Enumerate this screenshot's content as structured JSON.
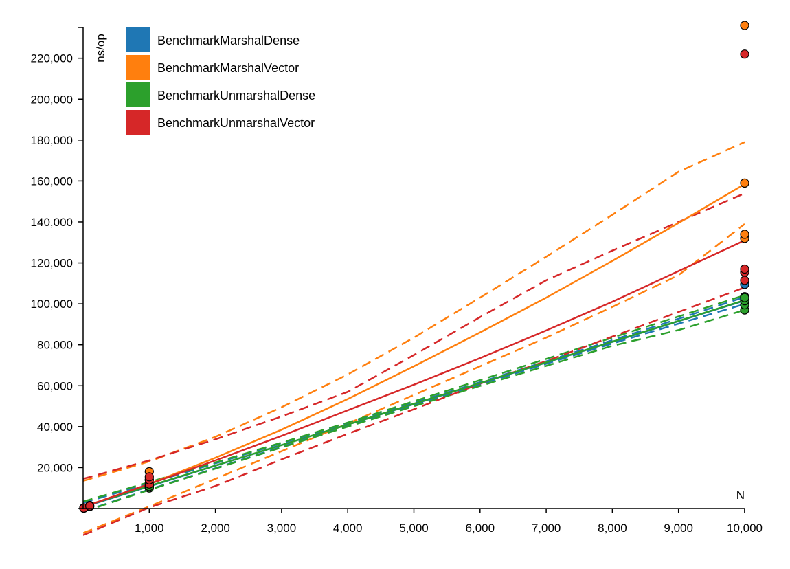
{
  "chart_data": {
    "type": "scatter",
    "xlabel": "N",
    "ylabel": "ns/op",
    "xlim": [
      0,
      10000
    ],
    "ylim": [
      0,
      235000
    ],
    "x_ticks": [
      1000,
      2000,
      3000,
      4000,
      5000,
      6000,
      7000,
      8000,
      9000,
      10000
    ],
    "x_tick_labels": [
      "1,000",
      "2,000",
      "3,000",
      "4,000",
      "5,000",
      "6,000",
      "7,000",
      "8,000",
      "9,000",
      "10,000"
    ],
    "y_ticks": [
      20000,
      40000,
      60000,
      80000,
      100000,
      120000,
      140000,
      160000,
      180000,
      200000,
      220000
    ],
    "y_tick_labels": [
      "20,000",
      "40,000",
      "60,000",
      "80,000",
      "100,000",
      "120,000",
      "140,000",
      "160,000",
      "180,000",
      "200,000",
      "220,000"
    ],
    "grid": false,
    "legend_position": "top-left",
    "series": [
      {
        "name": "BenchmarkMarshalDense",
        "color": "#1f77b4",
        "points": [
          [
            10,
            200
          ],
          [
            10,
            300
          ],
          [
            100,
            1000
          ],
          [
            100,
            1200
          ],
          [
            1000,
            10500
          ],
          [
            1000,
            11200
          ],
          [
            10000,
            102000
          ],
          [
            10000,
            103500
          ],
          [
            10000,
            109500
          ]
        ],
        "fit": [
          [
            0,
            700
          ],
          [
            1000,
            10800
          ],
          [
            2000,
            20900
          ],
          [
            3000,
            31000
          ],
          [
            4000,
            41000
          ],
          [
            5000,
            51000
          ],
          [
            6000,
            61200
          ],
          [
            7000,
            71300
          ],
          [
            8000,
            81400
          ],
          [
            9000,
            91500
          ],
          [
            10000,
            101600
          ]
        ],
        "ci_upper": [
          [
            0,
            2800
          ],
          [
            1000,
            12300
          ],
          [
            2000,
            22100
          ],
          [
            3000,
            31900
          ],
          [
            4000,
            41700
          ],
          [
            5000,
            51600
          ],
          [
            6000,
            61700
          ],
          [
            7000,
            71900
          ],
          [
            8000,
            82200
          ],
          [
            9000,
            92700
          ],
          [
            10000,
            103300
          ]
        ],
        "ci_lower": [
          [
            0,
            -1400
          ],
          [
            1000,
            9300
          ],
          [
            2000,
            19700
          ],
          [
            3000,
            30100
          ],
          [
            4000,
            40300
          ],
          [
            5000,
            50400
          ],
          [
            6000,
            60700
          ],
          [
            7000,
            70700
          ],
          [
            8000,
            80600
          ],
          [
            9000,
            90300
          ],
          [
            10000,
            99900
          ]
        ]
      },
      {
        "name": "BenchmarkMarshalVector",
        "color": "#ff7f0e",
        "points": [
          [
            10,
            300
          ],
          [
            100,
            1500
          ],
          [
            1000,
            14000
          ],
          [
            1000,
            18000
          ],
          [
            10000,
            132000
          ],
          [
            10000,
            134000
          ],
          [
            10000,
            159000
          ],
          [
            10000,
            236000
          ]
        ],
        "fit": [
          [
            0,
            800
          ],
          [
            1000,
            12000
          ],
          [
            2000,
            24800
          ],
          [
            3000,
            38500
          ],
          [
            4000,
            53500
          ],
          [
            5000,
            69500
          ],
          [
            6000,
            86000
          ],
          [
            7000,
            103000
          ],
          [
            8000,
            121000
          ],
          [
            9000,
            139500
          ],
          [
            10000,
            158500
          ]
        ],
        "ci_upper": [
          [
            0,
            13500
          ],
          [
            1000,
            23000
          ],
          [
            2000,
            35000
          ],
          [
            3000,
            49500
          ],
          [
            4000,
            65500
          ],
          [
            5000,
            83500
          ],
          [
            6000,
            103000
          ],
          [
            7000,
            123000
          ],
          [
            8000,
            143500
          ],
          [
            9000,
            164500
          ],
          [
            10000,
            179000
          ]
        ],
        "ci_lower": [
          [
            0,
            -12000
          ],
          [
            1000,
            1000
          ],
          [
            2000,
            14500
          ],
          [
            3000,
            28000
          ],
          [
            4000,
            41500
          ],
          [
            5000,
            55500
          ],
          [
            6000,
            69500
          ],
          [
            7000,
            83500
          ],
          [
            8000,
            98500
          ],
          [
            9000,
            114000
          ],
          [
            10000,
            139000
          ]
        ]
      },
      {
        "name": "BenchmarkUnmarshalDense",
        "color": "#2ca02c",
        "points": [
          [
            10,
            200
          ],
          [
            100,
            1000
          ],
          [
            1000,
            10000
          ],
          [
            1000,
            10800
          ],
          [
            10000,
            97000
          ],
          [
            10000,
            99500
          ],
          [
            10000,
            101500
          ],
          [
            10000,
            103000
          ]
        ],
        "fit": [
          [
            0,
            900
          ],
          [
            1000,
            11000
          ],
          [
            2000,
            21000
          ],
          [
            3000,
            31000
          ],
          [
            4000,
            41000
          ],
          [
            5000,
            51200
          ],
          [
            6000,
            61300
          ],
          [
            7000,
            71400
          ],
          [
            8000,
            81500
          ],
          [
            9000,
            91600
          ],
          [
            10000,
            101800
          ]
        ],
        "ci_upper": [
          [
            0,
            3400
          ],
          [
            1000,
            12900
          ],
          [
            2000,
            22500
          ],
          [
            3000,
            32200
          ],
          [
            4000,
            42000
          ],
          [
            5000,
            52400
          ],
          [
            6000,
            62700
          ],
          [
            7000,
            73100
          ],
          [
            8000,
            83500
          ],
          [
            9000,
            93800
          ],
          [
            10000,
            104200
          ]
        ],
        "ci_lower": [
          [
            0,
            -1600
          ],
          [
            1000,
            9100
          ],
          [
            2000,
            19500
          ],
          [
            3000,
            29800
          ],
          [
            4000,
            40000
          ],
          [
            5000,
            50000
          ],
          [
            6000,
            59900
          ],
          [
            7000,
            69700
          ],
          [
            8000,
            79500
          ],
          [
            9000,
            87200
          ],
          [
            10000,
            97000
          ]
        ]
      },
      {
        "name": "BenchmarkUnmarshalVector",
        "color": "#d62728",
        "points": [
          [
            10,
            250
          ],
          [
            100,
            1200
          ],
          [
            1000,
            12000
          ],
          [
            1000,
            14000
          ],
          [
            1000,
            15500
          ],
          [
            10000,
            111500
          ],
          [
            10000,
            115500
          ],
          [
            10000,
            117000
          ],
          [
            10000,
            222000
          ]
        ],
        "fit": [
          [
            0,
            700
          ],
          [
            1000,
            12000
          ],
          [
            2000,
            23500
          ],
          [
            3000,
            35500
          ],
          [
            4000,
            48000
          ],
          [
            5000,
            60500
          ],
          [
            6000,
            73500
          ],
          [
            7000,
            87000
          ],
          [
            8000,
            101000
          ],
          [
            9000,
            116000
          ],
          [
            10000,
            131000
          ]
        ],
        "ci_upper": [
          [
            0,
            14500
          ],
          [
            1000,
            23500
          ],
          [
            2000,
            33800
          ],
          [
            3000,
            45000
          ],
          [
            4000,
            57000
          ],
          [
            5000,
            75000
          ],
          [
            6000,
            93500
          ],
          [
            7000,
            111500
          ],
          [
            8000,
            126000
          ],
          [
            9000,
            140000
          ],
          [
            10000,
            154000
          ]
        ],
        "ci_lower": [
          [
            0,
            -13000
          ],
          [
            1000,
            500
          ],
          [
            2000,
            11000
          ],
          [
            3000,
            24000
          ],
          [
            4000,
            36500
          ],
          [
            5000,
            48500
          ],
          [
            6000,
            61000
          ],
          [
            7000,
            72000
          ],
          [
            8000,
            84000
          ],
          [
            9000,
            96000
          ],
          [
            10000,
            108000
          ]
        ]
      }
    ]
  }
}
